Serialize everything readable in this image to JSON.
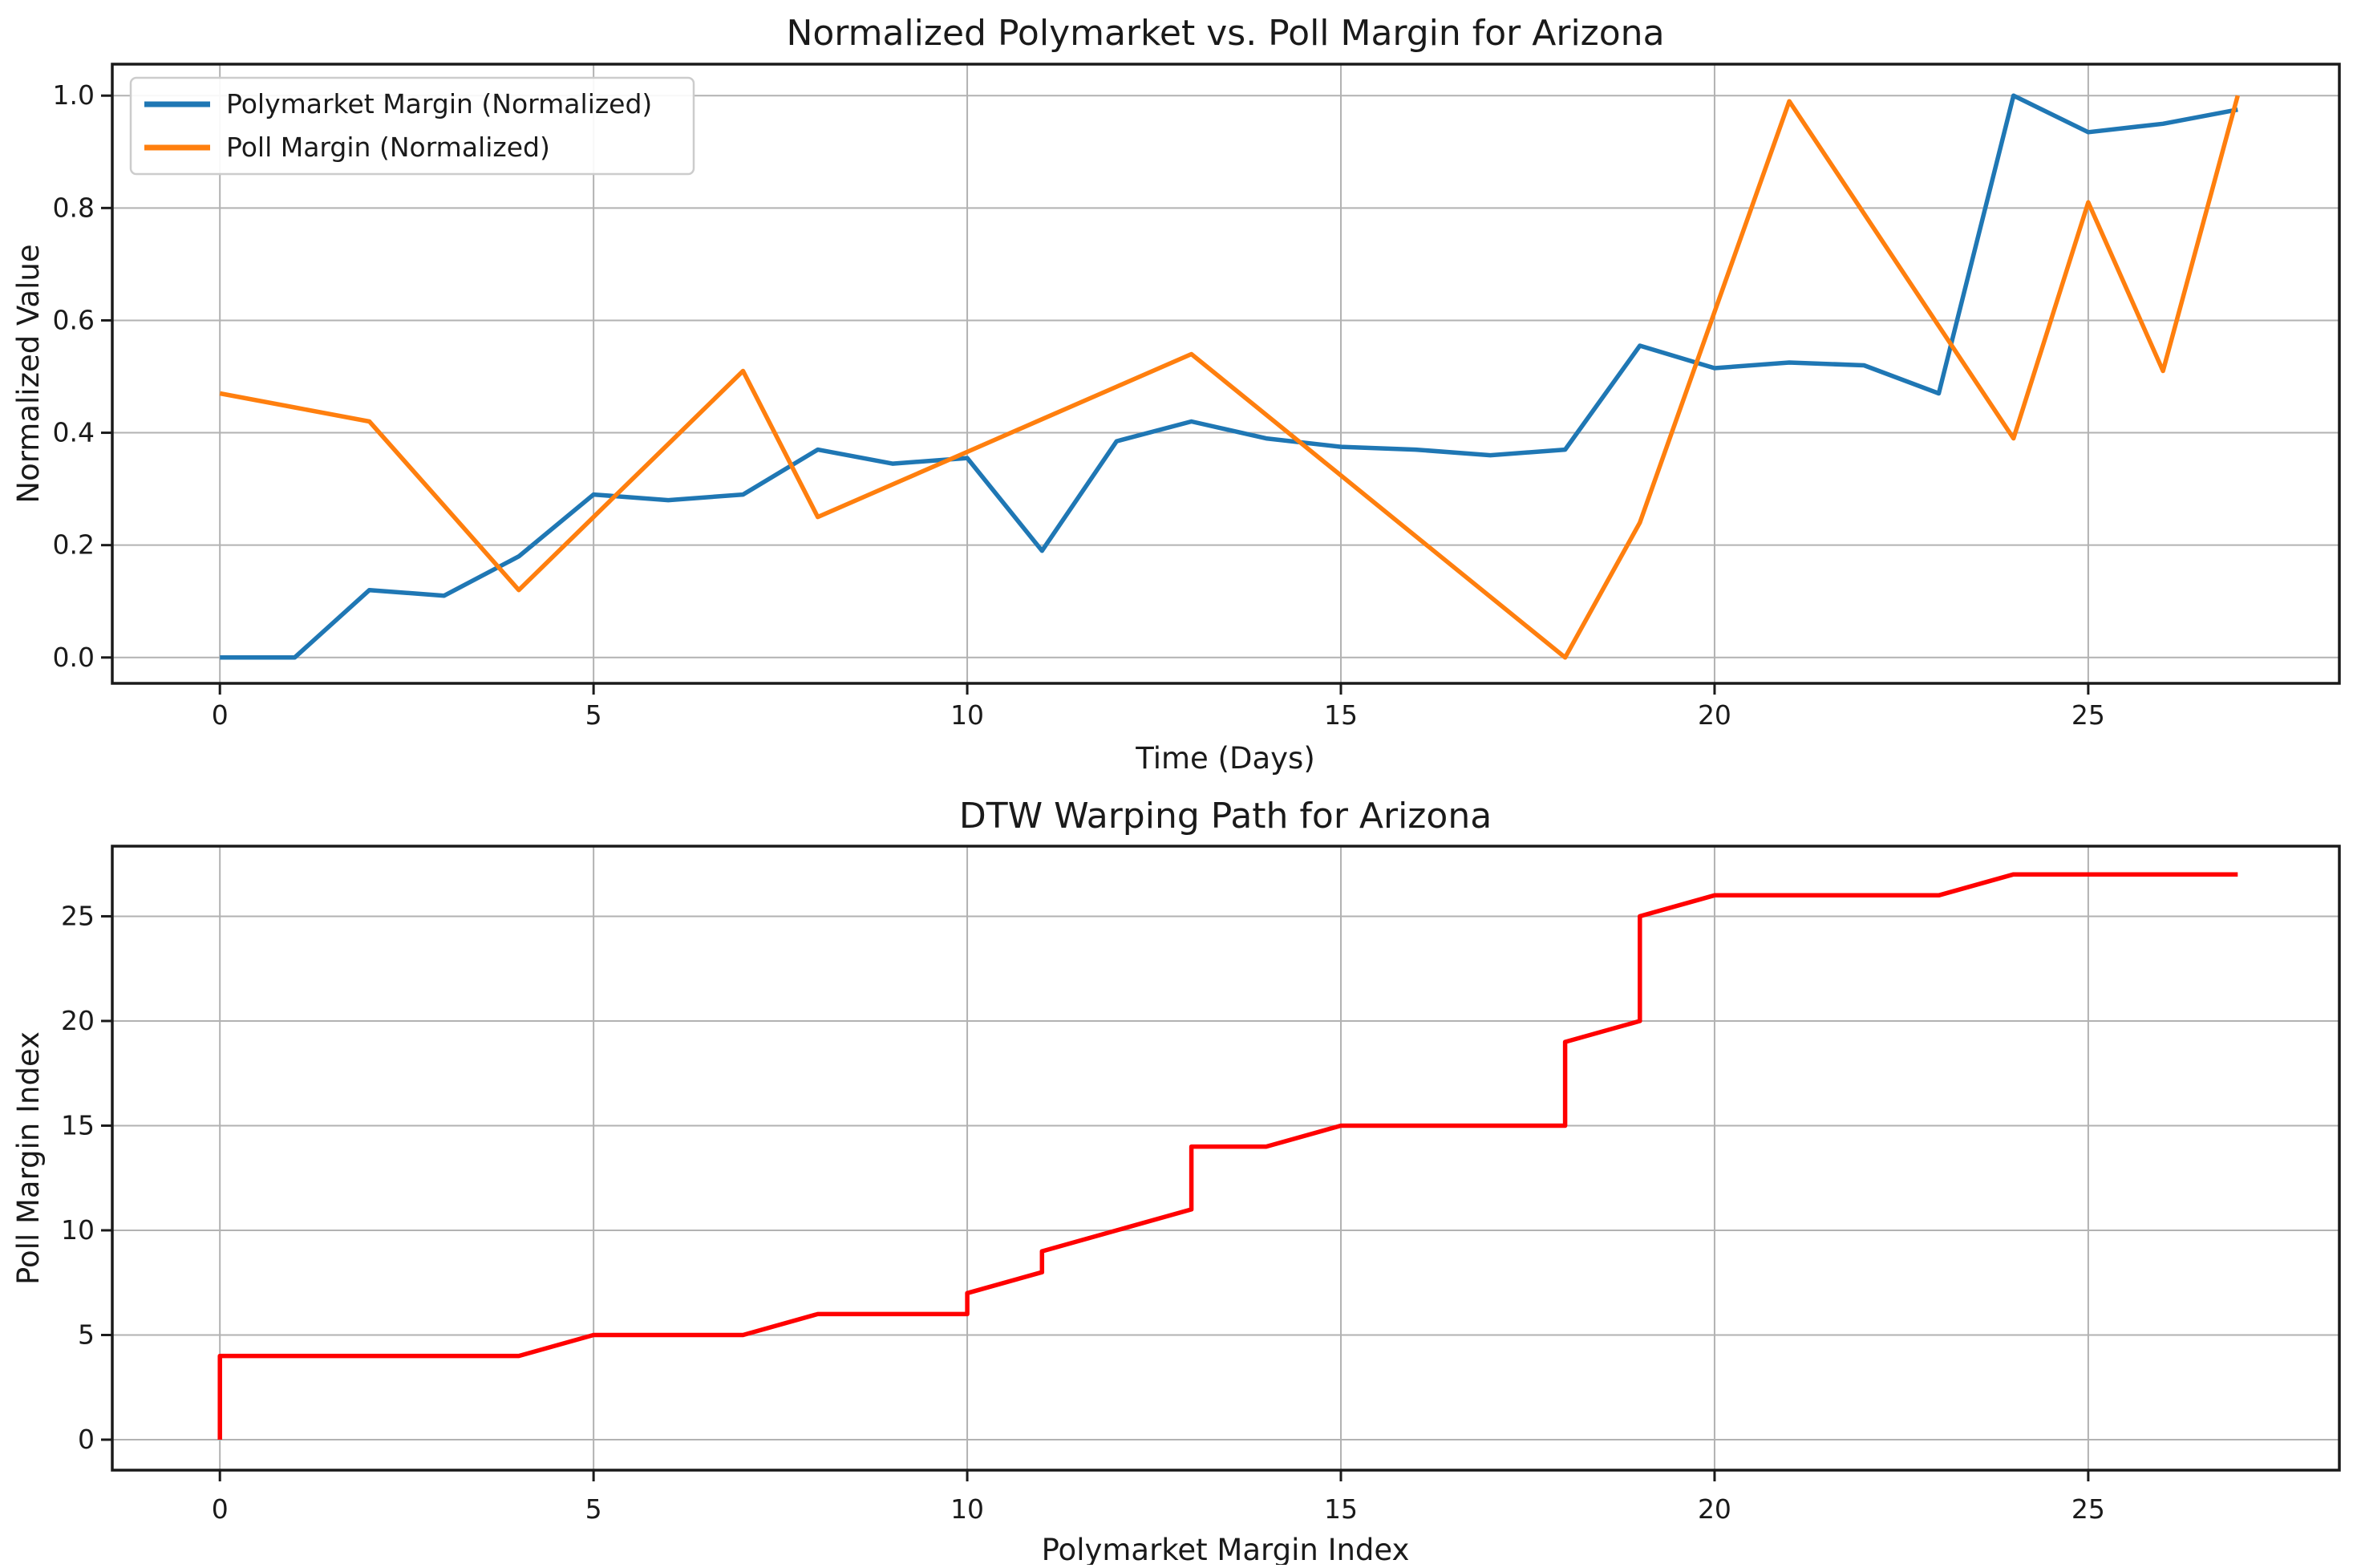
{
  "figure": {
    "background": "#ffffff"
  },
  "colors": {
    "polymarket_line": "#1f77b4",
    "poll_line": "#ff7f0e",
    "dtw_path_line": "#ff0000",
    "grid": "#b2b2b2",
    "spine": "#1a1a1a",
    "text": "#1a1a1a",
    "legend_border": "#cccccc",
    "legend_fill": "#ffffff"
  },
  "chart_data": [
    {
      "type": "line",
      "title": "Normalized Polymarket vs. Poll Margin for Arizona",
      "xlabel": "Time (Days)",
      "ylabel": "Normalized Value",
      "grid": true,
      "legend_position": "upper left",
      "xlim": [
        -1.44,
        28.36
      ],
      "ylim": [
        -0.046,
        1.056
      ],
      "x_ticks": [
        {
          "value": 0,
          "label": "0"
        },
        {
          "value": 5,
          "label": "5"
        },
        {
          "value": 10,
          "label": "10"
        },
        {
          "value": 15,
          "label": "15"
        },
        {
          "value": 20,
          "label": "20"
        },
        {
          "value": 25,
          "label": "25"
        }
      ],
      "y_ticks": [
        {
          "value": 0.0,
          "label": "0.0"
        },
        {
          "value": 0.2,
          "label": "0.2"
        },
        {
          "value": 0.4,
          "label": "0.4"
        },
        {
          "value": 0.6,
          "label": "0.6"
        },
        {
          "value": 0.8,
          "label": "0.8"
        },
        {
          "value": 1.0,
          "label": "1.0"
        }
      ],
      "x": [
        0,
        1,
        2,
        3,
        4,
        5,
        6,
        7,
        8,
        9,
        10,
        11,
        12,
        13,
        14,
        15,
        16,
        17,
        18,
        19,
        20,
        21,
        22,
        23,
        24,
        25,
        26,
        27
      ],
      "series": [
        {
          "name": "Polymarket Margin (Normalized)",
          "color_key": "polymarket_line",
          "values": [
            0.0,
            0.0,
            0.12,
            0.11,
            0.18,
            0.29,
            0.28,
            0.29,
            0.37,
            0.345,
            0.355,
            0.19,
            0.385,
            0.42,
            0.39,
            0.375,
            0.37,
            0.36,
            0.37,
            0.555,
            0.515,
            0.525,
            0.52,
            0.47,
            1.0,
            0.935,
            0.95,
            0.975
          ]
        },
        {
          "name": "Poll Margin (Normalized)",
          "color_key": "poll_line",
          "values": [
            0.47,
            0.445,
            0.42,
            0.27,
            0.12,
            0.25,
            0.38,
            0.51,
            0.25,
            0.308,
            0.366,
            0.424,
            0.482,
            0.54,
            0.432,
            0.324,
            0.216,
            0.108,
            0.0,
            0.24,
            0.615,
            0.99,
            0.79,
            0.59,
            0.39,
            0.81,
            0.51,
            1.0
          ]
        }
      ]
    },
    {
      "type": "line",
      "title": "DTW Warping Path for Arizona",
      "xlabel": "Polymarket Margin Index",
      "ylabel": "Poll Margin Index",
      "grid": true,
      "xlim": [
        -1.44,
        28.36
      ],
      "ylim": [
        -1.456,
        28.35
      ],
      "x_ticks": [
        {
          "value": 0,
          "label": "0"
        },
        {
          "value": 5,
          "label": "5"
        },
        {
          "value": 10,
          "label": "10"
        },
        {
          "value": 15,
          "label": "15"
        },
        {
          "value": 20,
          "label": "20"
        },
        {
          "value": 25,
          "label": "25"
        }
      ],
      "y_ticks": [
        {
          "value": 0,
          "label": "0"
        },
        {
          "value": 5,
          "label": "5"
        },
        {
          "value": 10,
          "label": "10"
        },
        {
          "value": 15,
          "label": "15"
        },
        {
          "value": 20,
          "label": "20"
        },
        {
          "value": 25,
          "label": "25"
        }
      ],
      "series": [
        {
          "name": "DTW warping path",
          "color_key": "dtw_path_line",
          "path": [
            [
              0,
              0
            ],
            [
              0,
              1
            ],
            [
              0,
              2
            ],
            [
              0,
              3
            ],
            [
              0,
              4
            ],
            [
              1,
              4
            ],
            [
              2,
              4
            ],
            [
              3,
              4
            ],
            [
              4,
              4
            ],
            [
              5,
              5
            ],
            [
              6,
              5
            ],
            [
              7,
              5
            ],
            [
              8,
              6
            ],
            [
              9,
              6
            ],
            [
              10,
              6
            ],
            [
              10,
              7
            ],
            [
              11,
              8
            ],
            [
              11,
              9
            ],
            [
              12,
              10
            ],
            [
              13,
              11
            ],
            [
              13,
              12
            ],
            [
              13,
              13
            ],
            [
              13,
              14
            ],
            [
              14,
              14
            ],
            [
              15,
              15
            ],
            [
              16,
              15
            ],
            [
              17,
              15
            ],
            [
              18,
              15
            ],
            [
              18,
              16
            ],
            [
              18,
              17
            ],
            [
              18,
              18
            ],
            [
              18,
              19
            ],
            [
              19,
              20
            ],
            [
              19,
              21
            ],
            [
              19,
              22
            ],
            [
              19,
              23
            ],
            [
              19,
              24
            ],
            [
              19,
              25
            ],
            [
              20,
              26
            ],
            [
              21,
              26
            ],
            [
              22,
              26
            ],
            [
              23,
              26
            ],
            [
              24,
              27
            ],
            [
              25,
              27
            ],
            [
              26,
              27
            ],
            [
              27,
              27
            ]
          ]
        }
      ]
    }
  ]
}
